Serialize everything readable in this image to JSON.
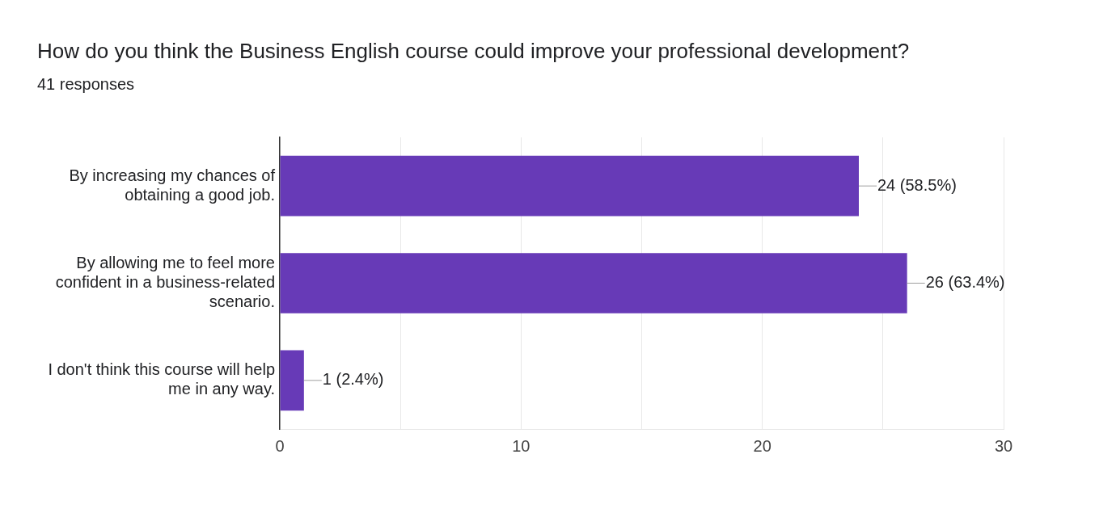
{
  "chart_data": {
    "type": "bar",
    "orientation": "horizontal",
    "title": "How do you think the Business English course could improve your professional development?",
    "subtitle": "41 responses",
    "categories": [
      "By increasing my chances of obtaining a good job.",
      "By allowing me to feel more confident in a business-related scenario.",
      "I don't think this course will help me in any way."
    ],
    "values": [
      24,
      26,
      1
    ],
    "color": "#673ab7",
    "value_labels": [
      "24 (58.5%)",
      "26 (63.4%)",
      "1 (2.4%)"
    ],
    "xlim": [
      0,
      30
    ],
    "xticks": [
      0,
      {
        "value": 5,
        "label": null
      },
      10,
      {
        "value": 15,
        "label": null
      },
      20,
      {
        "value": 25,
        "label": null
      },
      30
    ],
    "grid": "x",
    "legend": false
  }
}
